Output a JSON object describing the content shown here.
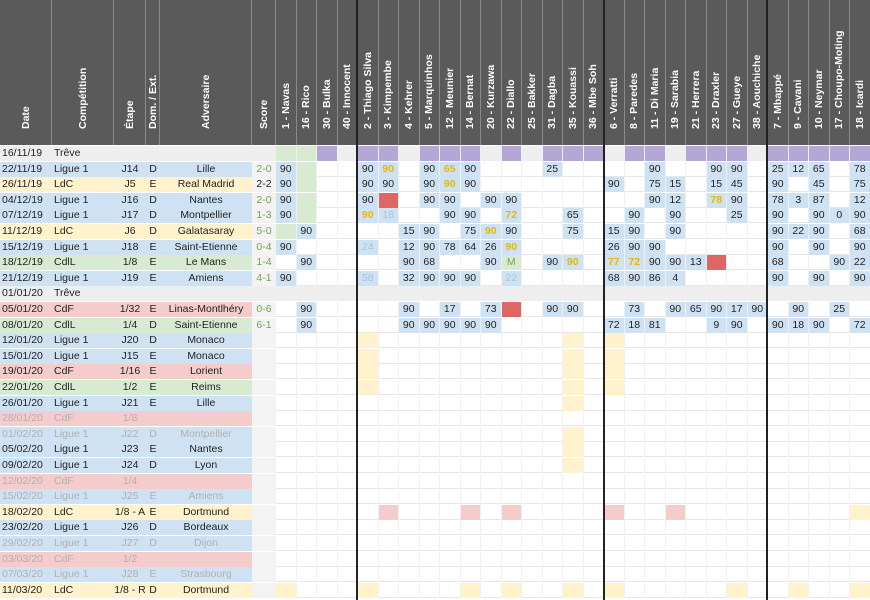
{
  "colors": {
    "ligue1": "#cfe2f3",
    "ldc": "#fff2cc",
    "cdl": "#d9ead3",
    "cdf": "#f4cccc",
    "treve": "#eeeeee",
    "grey_row": "#f3f3f3",
    "played90": "#cfe2f3",
    "sub": "#cfe2f3",
    "unused": "#d9ead3",
    "injured": "#e06666",
    "absent": "#b4a7d6",
    "fixture": "#fff2cc",
    "suspended": "#f4cccc",
    "mf": "#ffe599",
    "bottom_pink": "#f4cccc",
    "bottom_yellow": "#fff2cc",
    "score_win": "#6aa84f"
  },
  "headers": {
    "date": "Date",
    "competition": "Compétition",
    "etape": "Étape",
    "domext": "Dom. / Ext.",
    "adversaire": "Adversaire",
    "score": "Score"
  },
  "players": [
    "1 - Navas",
    "16 - Rico",
    "30 - Bulka",
    "40 - Innocent",
    "2 - Thiago Silva",
    "3 - Kimpembe",
    "4 - Kehrer",
    "5 - Marquinhos",
    "12 - Meunier",
    "14 - Bernat",
    "20 - Kurzawa",
    "22 - Diallo",
    "25 - Bakker",
    "31 - Dagba",
    "35 - Kouassi",
    "36 - Mbe Soh",
    "6 - Verratti",
    "8 - Paredes",
    "11 - Di Maria",
    "19 - Sarabia",
    "21 - Herrera",
    "23 - Draxler",
    "27 - Gueye",
    "38 - Aouchiche",
    "7 - Mbappé",
    "9 - Cavani",
    "10 - Neymar",
    "17 - Choupo-Moting",
    "18 - Icardi"
  ],
  "rows": [
    {
      "date": "16/11/19",
      "comp": "Trêve",
      "etape": "",
      "de": "",
      "adv": "",
      "score": "",
      "kind": "treve",
      "cells": {
        "0": "g",
        "1": "g",
        "2": "a",
        "4": "a",
        "5": "a",
        "7": "a",
        "8": "a",
        "9": "a",
        "11": "a",
        "13": "a",
        "14": "a",
        "15": "a",
        "17": "a",
        "18": "a",
        "20": "a",
        "21": "a",
        "22": "a",
        "24": "a",
        "25": "a",
        "26": "a",
        "27": "a",
        "28": "a"
      }
    },
    {
      "date": "22/11/19",
      "comp": "Ligue 1",
      "etape": "J14",
      "de": "D",
      "adv": "Lille",
      "score": "2-0",
      "kind": "ligue1",
      "cells": {
        "0": "90",
        "1": "g",
        "4": "90",
        "5": "90y",
        "7": "90",
        "8": "65y",
        "9": "90",
        "13": "25",
        "18": "90",
        "21": "90",
        "22": "90",
        "24": "25",
        "25": "12",
        "26": "65",
        "28": "78"
      }
    },
    {
      "date": "26/11/19",
      "comp": "LdC",
      "etape": "J5",
      "de": "E",
      "adv": "Real Madrid",
      "score": "2-2",
      "kind": "ldc",
      "cells": {
        "0": "90",
        "1": "g",
        "4": "90",
        "5": "90",
        "7": "90",
        "8": "90y",
        "9": "90",
        "16": "90",
        "18": "75",
        "19": "15",
        "21": "15",
        "22": "45",
        "24": "90",
        "26": "45",
        "28": "75"
      }
    },
    {
      "date": "04/12/19",
      "comp": "Ligue 1",
      "etape": "J16",
      "de": "D",
      "adv": "Nantes",
      "score": "2-0",
      "kind": "ligue1",
      "cells": {
        "0": "90",
        "1": "g",
        "4": "90",
        "5": "r",
        "7": "90",
        "8": "90",
        "10": "90",
        "11": "90",
        "18": "90",
        "19": "12",
        "21": "78y",
        "22": "90",
        "24": "78",
        "25": "3",
        "26": "87",
        "28": "12"
      }
    },
    {
      "date": "07/12/19",
      "comp": "Ligue 1",
      "etape": "J17",
      "de": "D",
      "adv": "Montpellier",
      "score": "1-3",
      "kind": "ligue1",
      "cells": {
        "0": "90",
        "1": "g",
        "4": "90y",
        "5": "18g",
        "8": "90",
        "9": "90",
        "11": "72y",
        "14": "65",
        "17": "90",
        "19": "90",
        "22": "25",
        "24": "90",
        "26": "90",
        "27": "0",
        "28": "90"
      }
    },
    {
      "date": "11/12/19",
      "comp": "LdC",
      "etape": "J6",
      "de": "D",
      "adv": "Galatasaray",
      "score": "5-0",
      "kind": "ldc",
      "cells": {
        "1": "90",
        "0": "g",
        "6": "15",
        "7": "90",
        "9": "75",
        "10": "90y",
        "11": "90",
        "14": "75",
        "16": "15",
        "17": "90",
        "19": "90",
        "24": "90",
        "25": "22",
        "26": "90",
        "28": "68"
      }
    },
    {
      "date": "15/12/19",
      "comp": "Ligue 1",
      "etape": "J18",
      "de": "E",
      "adv": "Saint-Etienne",
      "score": "0-4",
      "kind": "ligue1",
      "cells": {
        "0": "90",
        "4": "24g",
        "6": "12",
        "7": "90",
        "8": "78",
        "9": "64",
        "10": "26",
        "11": "90y",
        "16": "26",
        "17": "90",
        "18": "90",
        "24": "90",
        "26": "90",
        "28": "90"
      }
    },
    {
      "date": "18/12/19",
      "comp": "CdlL",
      "etape": "1/8",
      "de": "E",
      "adv": "Le Mans",
      "score": "1-4",
      "kind": "cdl",
      "cells": {
        "1": "90",
        "6": "90",
        "7": "68",
        "10": "90",
        "11": "M",
        "13": "90",
        "14": "90y",
        "16": "77y",
        "17": "72y",
        "18": "90",
        "19": "90",
        "20": "13",
        "21": "r",
        "24": "68",
        "27": "90",
        "28": "22"
      }
    },
    {
      "date": "21/12/19",
      "comp": "Ligue 1",
      "etape": "J19",
      "de": "E",
      "adv": "Amiens",
      "score": "4-1",
      "kind": "ligue1",
      "cells": {
        "0": "90",
        "4": "58g",
        "6": "32",
        "7": "90",
        "8": "90",
        "9": "90",
        "11": "22g",
        "16": "68",
        "17": "90",
        "18": "86",
        "19": "4",
        "24": "90",
        "26": "90",
        "28": "90"
      }
    },
    {
      "date": "01/01/20",
      "comp": "Trêve",
      "etape": "",
      "de": "",
      "adv": "",
      "score": "",
      "kind": "treve",
      "cells": {}
    },
    {
      "date": "05/01/20",
      "comp": "CdF",
      "etape": "1/32",
      "de": "E",
      "adv": "Linas-Montlhéry",
      "score": "0-6",
      "kind": "cdf",
      "cells": {
        "1": "90",
        "6": "90",
        "8": "17",
        "10": "73",
        "11": "r",
        "13": "90",
        "14": "90",
        "17": "73",
        "19": "90",
        "20": "65",
        "21": "90",
        "22": "17",
        "23": "90",
        "25": "90",
        "27": "25"
      }
    },
    {
      "date": "08/01/20",
      "comp": "CdlL",
      "etape": "1/4",
      "de": "D",
      "adv": "Saint-Etienne",
      "score": "6-1",
      "kind": "cdl",
      "cells": {
        "1": "90",
        "6": "90",
        "7": "90",
        "8": "90",
        "9": "90",
        "10": "90",
        "16": "72",
        "17": "18",
        "18": "81",
        "21": "9",
        "22": "90",
        "24": "90",
        "25": "18",
        "26": "90",
        "28": "72"
      }
    },
    {
      "date": "12/01/20",
      "comp": "Ligue 1",
      "etape": "J20",
      "de": "D",
      "adv": "Monaco",
      "score": "",
      "kind": "ligue1",
      "cells": {
        "4": "f",
        "14": "f",
        "16": "f"
      }
    },
    {
      "date": "15/01/20",
      "comp": "Ligue 1",
      "etape": "J15",
      "de": "E",
      "adv": "Monaco",
      "score": "",
      "kind": "ligue1",
      "cells": {
        "4": "f",
        "14": "f",
        "16": "f"
      }
    },
    {
      "date": "19/01/20",
      "comp": "CdF",
      "etape": "1/16",
      "de": "E",
      "adv": "Lorient",
      "score": "",
      "kind": "cdf",
      "cells": {
        "4": "f",
        "14": "f",
        "16": "f"
      }
    },
    {
      "date": "22/01/20",
      "comp": "CdlL",
      "etape": "1/2",
      "de": "E",
      "adv": "Reims",
      "score": "",
      "kind": "cdl",
      "cells": {
        "4": "f",
        "14": "f",
        "16": "f"
      }
    },
    {
      "date": "26/01/20",
      "comp": "Ligue 1",
      "etape": "J21",
      "de": "E",
      "adv": "Lille",
      "score": "",
      "kind": "ligue1",
      "cells": {
        "14": "f"
      }
    },
    {
      "date": "28/01/20",
      "comp": "CdF",
      "etape": "1/8",
      "de": "",
      "adv": "",
      "score": "",
      "kind": "cdf_dim",
      "cells": {}
    },
    {
      "date": "01/02/20",
      "comp": "Ligue 1",
      "etape": "J22",
      "de": "D",
      "adv": "Montpellier",
      "score": "",
      "kind": "ligue1_dim",
      "cells": {
        "14": "f"
      }
    },
    {
      "date": "05/02/20",
      "comp": "Ligue 1",
      "etape": "J23",
      "de": "E",
      "adv": "Nantes",
      "score": "",
      "kind": "ligue1",
      "cells": {
        "14": "f"
      }
    },
    {
      "date": "09/02/20",
      "comp": "Ligue 1",
      "etape": "J24",
      "de": "D",
      "adv": "Lyon",
      "score": "",
      "kind": "ligue1",
      "cells": {
        "14": "f"
      }
    },
    {
      "date": "12/02/20",
      "comp": "CdF",
      "etape": "1/4",
      "de": "",
      "adv": "",
      "score": "",
      "kind": "cdf_dim",
      "cells": {}
    },
    {
      "date": "15/02/20",
      "comp": "Ligue 1",
      "etape": "J25",
      "de": "E",
      "adv": "Amiens",
      "score": "",
      "kind": "ligue1_dim",
      "cells": {}
    },
    {
      "date": "18/02/20",
      "comp": "LdC",
      "etape": "1/8 - A",
      "de": "E",
      "adv": "Dortmund",
      "score": "",
      "kind": "ldc",
      "cells": {
        "5": "p",
        "9": "p",
        "11": "p",
        "16": "p",
        "19": "p",
        "28": "y"
      }
    },
    {
      "date": "23/02/20",
      "comp": "Ligue 1",
      "etape": "J26",
      "de": "D",
      "adv": "Bordeaux",
      "score": "",
      "kind": "ligue1",
      "cells": {}
    },
    {
      "date": "29/02/20",
      "comp": "Ligue 1",
      "etape": "J27",
      "de": "D",
      "adv": "Dijon",
      "score": "",
      "kind": "ligue1_dim",
      "cells": {}
    },
    {
      "date": "03/03/20",
      "comp": "CdF",
      "etape": "1/2",
      "de": "",
      "adv": "",
      "score": "",
      "kind": "cdf_dim",
      "cells": {}
    },
    {
      "date": "07/03/20",
      "comp": "Ligue 1",
      "etape": "J28",
      "de": "E",
      "adv": "Strasbourg",
      "score": "",
      "kind": "ligue1_dim",
      "cells": {}
    },
    {
      "date": "11/03/20",
      "comp": "LdC",
      "etape": "1/8 - R",
      "de": "D",
      "adv": "Dortmund",
      "score": "",
      "kind": "ldc",
      "cells": {
        "0": "y",
        "4": "y",
        "9": "y",
        "11": "y",
        "14": "y",
        "16": "y",
        "22": "y",
        "25": "y",
        "28": "y"
      }
    }
  ]
}
